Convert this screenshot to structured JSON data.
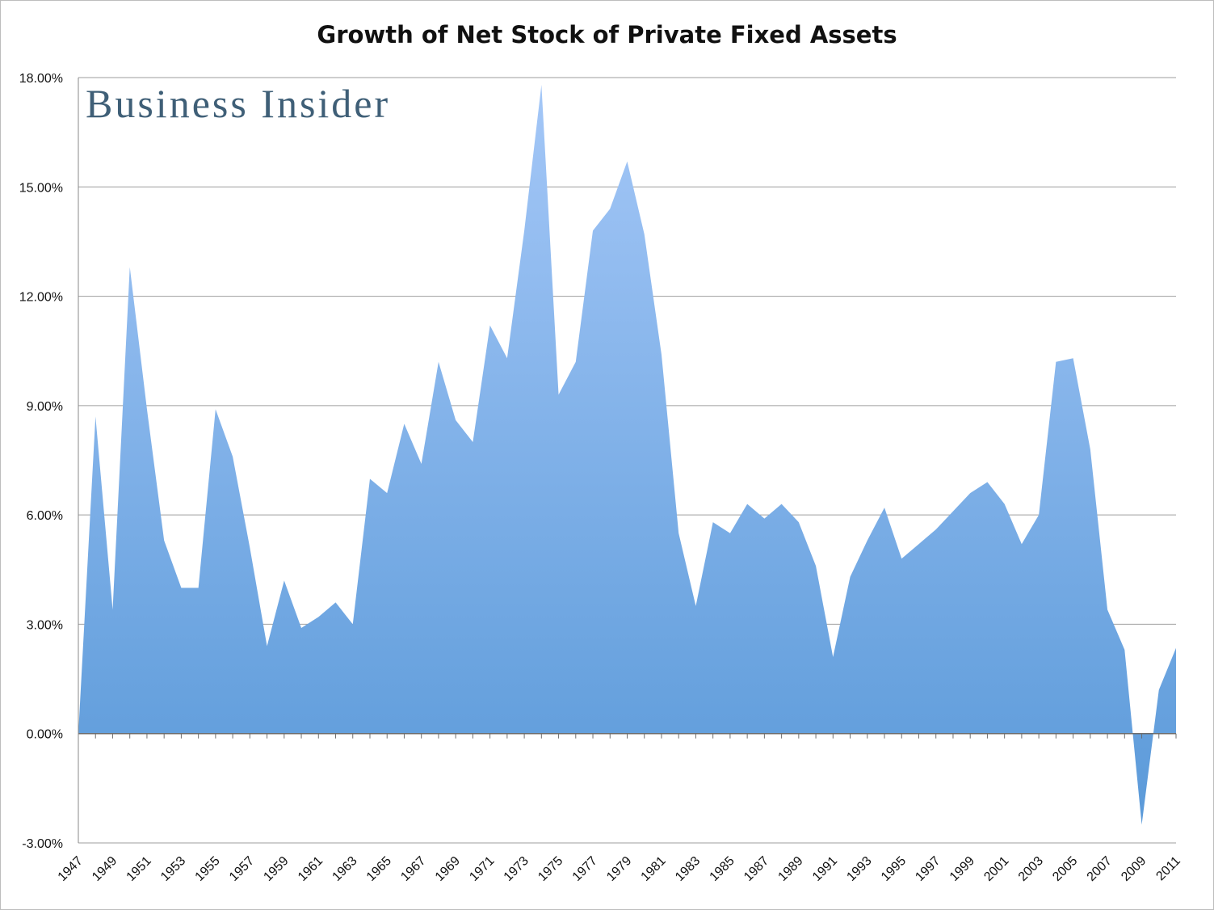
{
  "chart_data": {
    "type": "area",
    "title": "Growth of Net Stock of Private Fixed Assets",
    "xlabel": "",
    "ylabel": "",
    "ylim": [
      -3.0,
      18.0
    ],
    "y_ticks": [
      "18.00%",
      "15.00%",
      "12.00%",
      "9.00%",
      "6.00%",
      "3.00%",
      "0.00%",
      "-3.00%"
    ],
    "y_tick_values": [
      18,
      15,
      12,
      9,
      6,
      3,
      0,
      -3
    ],
    "x_tick_labels": [
      "1947",
      "1949",
      "1951",
      "1953",
      "1955",
      "1957",
      "1959",
      "1961",
      "1963",
      "1965",
      "1967",
      "1969",
      "1971",
      "1973",
      "1975",
      "1977",
      "1979",
      "1981",
      "1983",
      "1985",
      "1987",
      "1989",
      "1991",
      "1993",
      "1995",
      "1997",
      "1999",
      "2001",
      "2003",
      "2005",
      "2007",
      "2009",
      "2011"
    ],
    "grid": true,
    "watermark": "Business Insider",
    "color_top": "#a4c7f7",
    "color_bottom": "#5b9ad9",
    "x": [
      1947,
      1948,
      1949,
      1950,
      1951,
      1952,
      1953,
      1954,
      1955,
      1956,
      1957,
      1958,
      1959,
      1960,
      1961,
      1962,
      1963,
      1964,
      1965,
      1966,
      1967,
      1968,
      1969,
      1970,
      1971,
      1972,
      1973,
      1974,
      1975,
      1976,
      1977,
      1978,
      1979,
      1980,
      1981,
      1982,
      1983,
      1984,
      1985,
      1986,
      1987,
      1988,
      1989,
      1990,
      1991,
      1992,
      1993,
      1994,
      1995,
      1996,
      1997,
      1998,
      1999,
      2000,
      2001,
      2002,
      2003,
      2004,
      2005,
      2006,
      2007,
      2008,
      2009,
      2010,
      2011
    ],
    "values": [
      0.0,
      8.7,
      3.4,
      12.8,
      8.9,
      5.3,
      4.0,
      4.0,
      8.9,
      7.6,
      5.1,
      2.4,
      4.2,
      2.9,
      3.2,
      3.6,
      3.0,
      6.99,
      6.6,
      8.5,
      7.4,
      10.2,
      8.6,
      8.0,
      11.2,
      10.3,
      13.8,
      17.8,
      9.3,
      10.2,
      13.8,
      14.4,
      15.7,
      13.7,
      10.4,
      5.5,
      3.5,
      5.8,
      5.5,
      6.3,
      5.9,
      6.3,
      5.8,
      4.6,
      2.1,
      4.3,
      5.3,
      6.2,
      4.8,
      5.2,
      5.6,
      6.1,
      6.6,
      6.9,
      6.3,
      5.2,
      6.0,
      10.2,
      10.3,
      7.8,
      3.4,
      2.3,
      -2.5,
      1.2,
      2.35
    ]
  }
}
